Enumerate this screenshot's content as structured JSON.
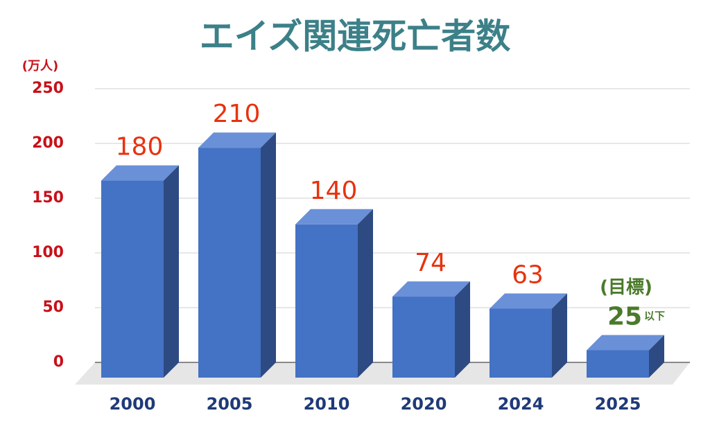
{
  "chart_data": {
    "type": "bar",
    "title": "エイズ関連死亡者数",
    "y_unit": "(万人)",
    "categories": [
      "2000",
      "2005",
      "2010",
      "2020",
      "2024",
      "2025"
    ],
    "values": [
      180,
      210,
      140,
      74,
      63,
      25
    ],
    "color": "#4472c4",
    "ylim": [
      0,
      250
    ],
    "yticks": [
      0,
      50,
      100,
      150,
      200,
      250
    ],
    "grid": true,
    "annotations": [
      "(目標)",
      "以下"
    ]
  }
}
